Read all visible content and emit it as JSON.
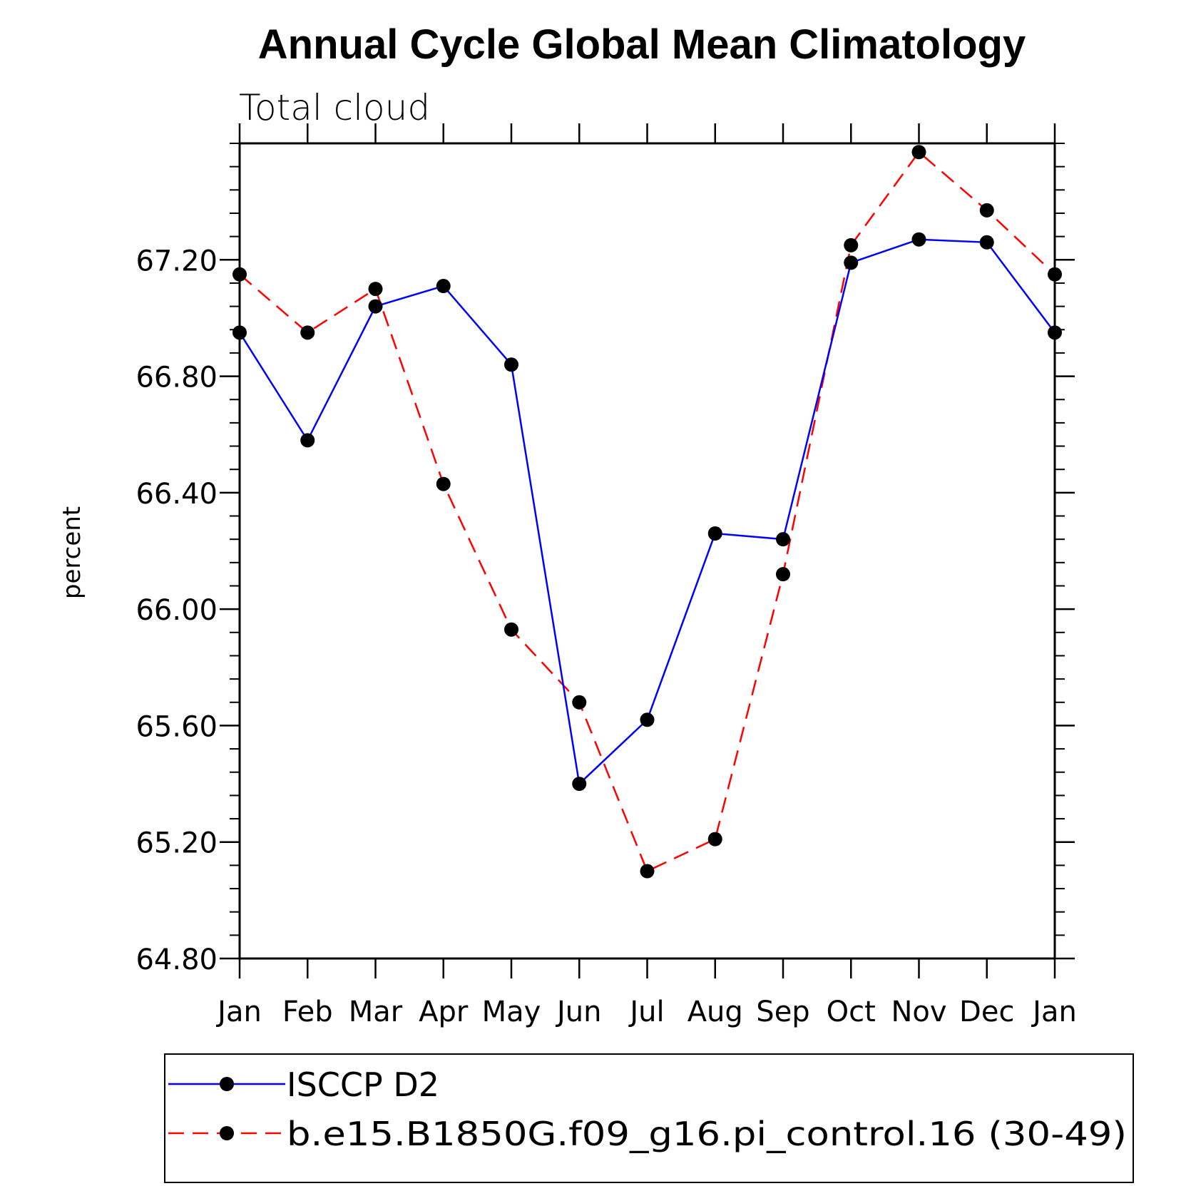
{
  "chart_data": {
    "type": "line",
    "title": "Annual Cycle Global Mean Climatology",
    "subtitle": "Total cloud",
    "xlabel": "",
    "ylabel": "percent",
    "categories": [
      "Jan",
      "Feb",
      "Mar",
      "Apr",
      "May",
      "Jun",
      "Jul",
      "Aug",
      "Sep",
      "Oct",
      "Nov",
      "Dec",
      "Jan"
    ],
    "ylim": [
      64.8,
      67.6
    ],
    "yticks": [
      "64.80",
      "65.20",
      "65.60",
      "66.00",
      "66.40",
      "66.80",
      "67.20"
    ],
    "ytick_values": [
      64.8,
      65.2,
      65.6,
      66.0,
      66.4,
      66.8,
      67.2
    ],
    "series": [
      {
        "name": "ISCCP D2",
        "color": "#0000ff",
        "dash": "solid",
        "values": [
          66.95,
          66.58,
          67.04,
          67.11,
          66.84,
          65.4,
          65.62,
          66.26,
          66.24,
          67.19,
          67.27,
          67.26,
          66.95
        ]
      },
      {
        "name": "b.e15.B1850G.f09_g16.pi_control.16 (30-49)",
        "color": "#ff0000",
        "dash": "dashed",
        "values": [
          67.15,
          66.95,
          67.1,
          66.43,
          65.93,
          65.68,
          65.1,
          65.21,
          66.12,
          67.25,
          67.57,
          67.37,
          67.15
        ]
      }
    ],
    "marker_color": "#000000",
    "legend_position": "bottom"
  }
}
